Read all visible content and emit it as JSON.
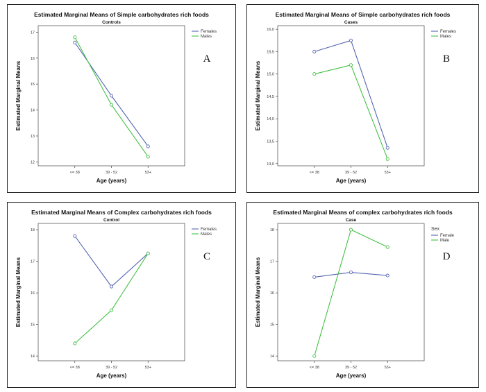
{
  "chart_data": [
    {
      "type": "line",
      "letter": "A",
      "title": "Estimated Marginal Means of Simple carbohydrates rich foods",
      "subtitle": "Controls",
      "xlabel": "Age (years)",
      "ylabel": "Estimated Marginal Means",
      "categories": [
        "<= 38",
        "39 - 52",
        "53+"
      ],
      "ylim": [
        11.85,
        17.25
      ],
      "yticks": [
        12,
        13,
        14,
        15,
        16,
        17
      ],
      "ytick_labels": [
        "12",
        "13",
        "14",
        "15",
        "16",
        "17"
      ],
      "legend_title": "",
      "series": [
        {
          "name": "Females",
          "color": "#5566b0",
          "values": [
            16.6,
            14.55,
            12.6
          ]
        },
        {
          "name": "Males",
          "color": "#44c044",
          "values": [
            16.8,
            14.2,
            12.2
          ]
        }
      ]
    },
    {
      "type": "line",
      "letter": "B",
      "title": "Estimated Marginal Means of Simple carbohydrates rich foods",
      "subtitle": "Cases",
      "xlabel": "Age (years)",
      "ylabel": "Estimated Marginal Means",
      "categories": [
        "<= 38",
        "39 - 52",
        "53+"
      ],
      "ylim": [
        12.95,
        16.08
      ],
      "yticks": [
        13.0,
        13.5,
        14.0,
        14.5,
        15.0,
        15.5,
        16.0
      ],
      "ytick_labels": [
        "13,0",
        "13,5",
        "14,0",
        "14,5",
        "15,0",
        "15,5",
        "16,0"
      ],
      "legend_title": "",
      "series": [
        {
          "name": "Females",
          "color": "#5566b0",
          "values": [
            15.5,
            15.75,
            13.35
          ]
        },
        {
          "name": "Males",
          "color": "#44c044",
          "values": [
            15.0,
            15.2,
            13.1
          ]
        }
      ]
    },
    {
      "type": "line",
      "letter": "C",
      "title": "Estimated Marginal Means of Complex carbohydrates rich foods",
      "subtitle": "Control",
      "xlabel": "Age (years)",
      "ylabel": "Estimated Marginal Means",
      "categories": [
        "<= 38",
        "39 - 52",
        "53+"
      ],
      "ylim": [
        13.85,
        18.2
      ],
      "yticks": [
        14,
        15,
        16,
        17,
        18
      ],
      "ytick_labels": [
        "14",
        "15",
        "16",
        "17",
        "18"
      ],
      "legend_title": "",
      "series": [
        {
          "name": "Females",
          "color": "#5566b0",
          "values": [
            17.8,
            16.2,
            17.25
          ]
        },
        {
          "name": "Males",
          "color": "#44c044",
          "values": [
            14.4,
            15.45,
            17.25
          ]
        }
      ]
    },
    {
      "type": "line",
      "letter": "D",
      "title": "Estimated Marginal Means of complex carbohydrates rich foods",
      "subtitle": "Case",
      "xlabel": "Age (years)",
      "ylabel": "Estimated Marginal Means",
      "categories": [
        "<= 38",
        "39 - 52",
        "53+"
      ],
      "ylim": [
        13.85,
        18.2
      ],
      "yticks": [
        14,
        15,
        16,
        17,
        18
      ],
      "ytick_labels": [
        "14",
        "15",
        "16",
        "17",
        "18"
      ],
      "legend_title": "Sex",
      "series": [
        {
          "name": "Female",
          "color": "#5566b0",
          "values": [
            16.5,
            16.65,
            16.55
          ]
        },
        {
          "name": "Male",
          "color": "#44c044",
          "values": [
            14.0,
            18.0,
            17.45
          ]
        }
      ]
    }
  ]
}
